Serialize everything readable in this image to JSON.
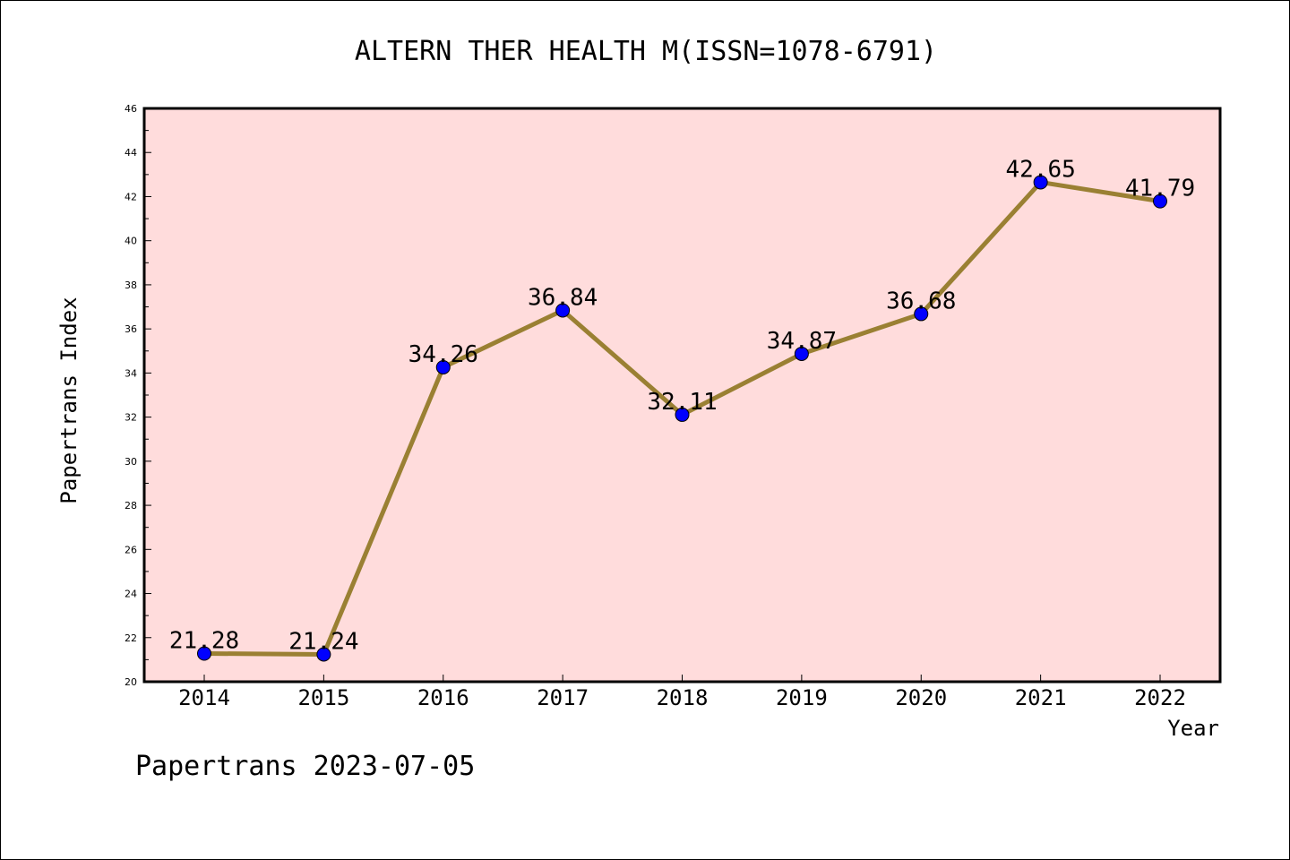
{
  "chart_data": {
    "type": "line",
    "title": "ALTERN THER HEALTH M(ISSN=1078-6791)",
    "xlabel": "Year",
    "ylabel": "Papertrans Index",
    "categories": [
      "2014",
      "2015",
      "2016",
      "2017",
      "2018",
      "2019",
      "2020",
      "2021",
      "2022"
    ],
    "values": [
      21.28,
      21.24,
      34.26,
      36.84,
      32.11,
      34.87,
      36.68,
      42.65,
      41.79
    ],
    "value_labels": [
      "21.28",
      "21.24",
      "34.26",
      "36.84",
      "32.11",
      "34.87",
      "36.68",
      "42.65",
      "41.79"
    ],
    "ylim": [
      20,
      46
    ],
    "yticks": [
      "20",
      "22",
      "24",
      "26",
      "28",
      "30",
      "32",
      "34",
      "36",
      "38",
      "40",
      "42",
      "44",
      "46"
    ],
    "grid": false,
    "legend": "none",
    "colors": {
      "plot_background": "#ffdcdc",
      "line": "#9a8033",
      "marker": "#0000ff"
    }
  },
  "footer": {
    "text": "Papertrans 2023-07-05"
  }
}
